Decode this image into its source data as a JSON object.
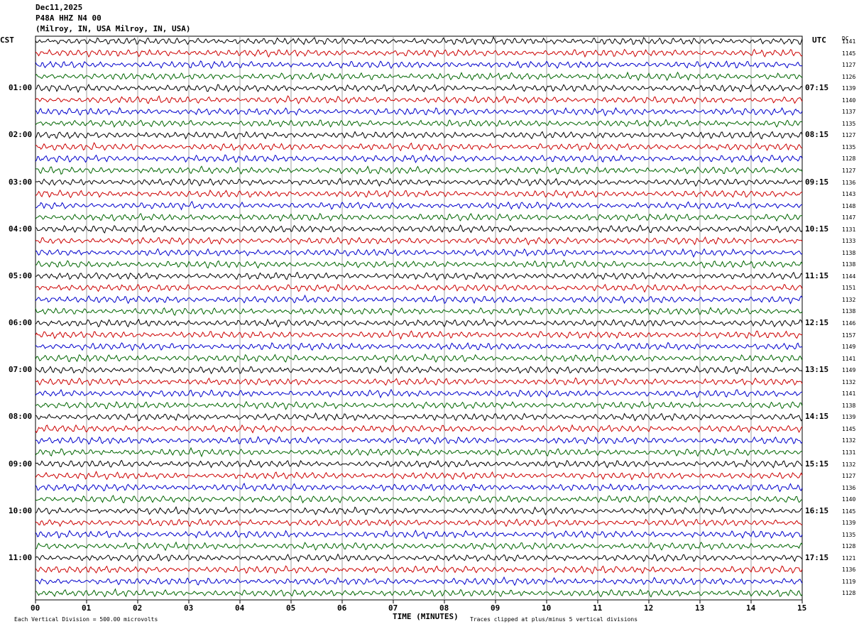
{
  "header": {
    "date": "Dec11,2025",
    "station": "P48A HHZ N4 00",
    "location": "(Milroy, IN, USA Milroy, IN, USA)"
  },
  "left_tz": "CST",
  "right_tz": "UTC",
  "dc_label": "DC",
  "footer": {
    "scale": "Each Vertical Division =  500.00 microvolts",
    "xlabel": "TIME (MINUTES)",
    "clip": "Traces clipped at plus/minus 5 vertical divisions"
  },
  "colors": {
    "trace1": "#000000",
    "trace2": "#cc0000",
    "trace3": "#0000cc",
    "trace4": "#006600",
    "grid": "#888888"
  },
  "chart_data": {
    "type": "line",
    "title": "",
    "xlabel": "TIME (MINUTES)",
    "xlim": [
      0,
      15
    ],
    "x_ticks": [
      "00",
      "01",
      "02",
      "03",
      "04",
      "05",
      "06",
      "07",
      "08",
      "09",
      "10",
      "11",
      "12",
      "13",
      "14",
      "15"
    ],
    "traces_per_hour": 4,
    "hours_left": [
      "01:00",
      "02:00",
      "03:00",
      "04:00",
      "05:00",
      "06:00",
      "07:00",
      "08:00",
      "09:00",
      "10:00",
      "11:00"
    ],
    "hours_right": [
      "07:15",
      "08:15",
      "09:15",
      "10:15",
      "11:15",
      "12:15",
      "13:15",
      "14:15",
      "15:15",
      "16:15",
      "17:15"
    ],
    "dc_offsets": [
      "1141",
      "1145",
      "1127",
      "1126",
      "1139",
      "1140",
      "1137",
      "1135",
      "1127",
      "1135",
      "1128",
      "1127",
      "1136",
      "1143",
      "1148",
      "1147",
      "1131",
      "1133",
      "1138",
      "1138",
      "1144",
      "1151",
      "1132",
      "1138",
      "1146",
      "1157",
      "1149",
      "1141",
      "1149",
      "1132",
      "1141",
      "1138",
      "1139",
      "1145",
      "1132",
      "1131",
      "1132",
      "1127",
      "1136",
      "1140",
      "1145",
      "1139",
      "1135",
      "1128",
      "1121",
      "1136",
      "1119",
      "1128"
    ]
  }
}
